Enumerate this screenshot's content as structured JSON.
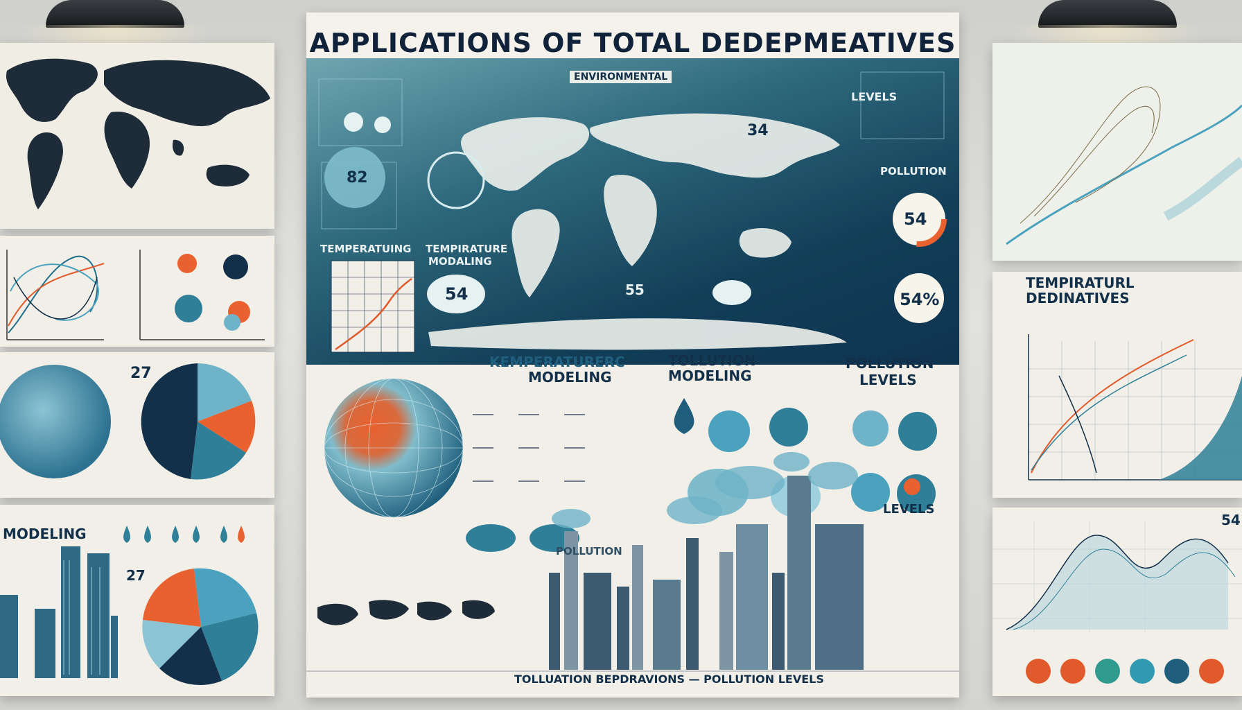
{
  "poster": {
    "title": "APPLICATIONS OF TOTAL DEDEPMEATIVES",
    "top_band": {
      "label_environmental": "ENVIRONMENTAL",
      "label_levels": "LEVELS",
      "label_pollution": "POLLUTION",
      "label_temperature_a": "TEMPERATUING",
      "label_temperature_b": "TEMPIRATURE",
      "label_modeling": "MODALING",
      "value_82": "82",
      "value_54_cloud": "54",
      "value_34": "34",
      "value_54_orange": "54",
      "value_54pct": "54%",
      "value_55": "55"
    },
    "lower_band": {
      "label_kemperature": "KEMPERATURERC",
      "label_modeling": "MODELING",
      "label_tollution": "TOLLUTION",
      "label_tollution_modeling": "MODELING",
      "label_pollution": "POLLUTION",
      "label_levels": "LEVELS",
      "label_levels_2": "LEVELS",
      "label_pollution_small": "POLLUTION",
      "footer_text": "TOLLUATION BEPDRAVIONS — POLLUTION LEVELS"
    }
  },
  "left_panels": {
    "bottom_label": "MODELING",
    "pie_value_a": "27",
    "pie_value_b": "27"
  },
  "right_panels": {
    "middle_title_line1": "TEMPIRATURL",
    "middle_title_line2": "DEDINATIVES",
    "corner_value": "54"
  },
  "colors": {
    "navy": "#13304a",
    "teal": "#2f7f98",
    "light_teal": "#6fb3c8",
    "orange": "#e9612e",
    "paper": "#f1efe7"
  }
}
